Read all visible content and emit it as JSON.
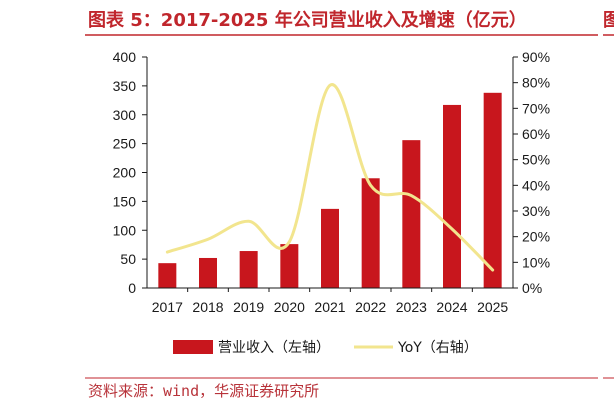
{
  "next_figure_title_fragment": "图",
  "source": "资料来源：wind，华源证券研究所",
  "colors": {
    "title": "#c0262c",
    "rule": "#c0262c",
    "bar": "#c8161d",
    "line": "#f2e58e",
    "source": "#b8333a",
    "axis": "#1a1a1a"
  },
  "chart_data": {
    "type": "bar",
    "title": "图表 5：2017-2025 年公司营业收入及增速（亿元）",
    "categories": [
      "2017",
      "2018",
      "2019",
      "2020",
      "2021",
      "2022",
      "2023",
      "2024",
      "2025"
    ],
    "series": [
      {
        "name": "营业收入（左轴）",
        "type": "bar",
        "axis": "left",
        "values": [
          43,
          52,
          64,
          76,
          137,
          190,
          256,
          317,
          338
        ]
      },
      {
        "name": "YoY（右轴）",
        "type": "line",
        "axis": "right",
        "smooth": true,
        "values": [
          14,
          19,
          26,
          18,
          79,
          40,
          36,
          23,
          7
        ]
      }
    ],
    "y_left": {
      "ylim": [
        0,
        400
      ],
      "ticks": [
        "0",
        "50",
        "100",
        "150",
        "200",
        "250",
        "300",
        "350",
        "400"
      ]
    },
    "y_right": {
      "ylim": [
        0,
        90
      ],
      "ticks": [
        "0%",
        "10%",
        "20%",
        "30%",
        "40%",
        "50%",
        "60%",
        "70%",
        "80%",
        "90%"
      ]
    },
    "grid": false,
    "legend_position": "bottom"
  }
}
